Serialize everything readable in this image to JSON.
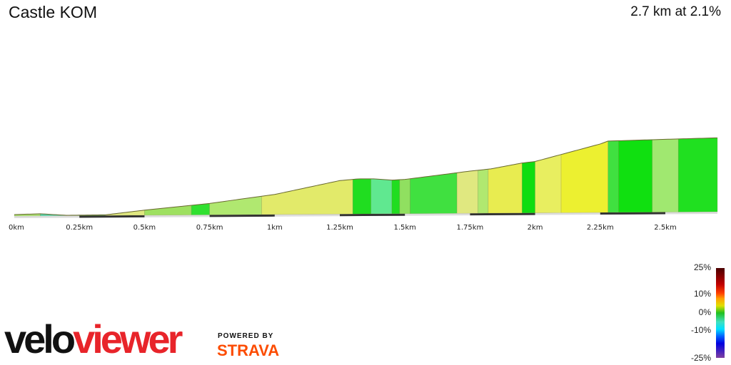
{
  "header": {
    "title": "Castle KOM",
    "summary": "2.7 km at 2.1%"
  },
  "chart_data": {
    "type": "area",
    "xlabel": "",
    "ylabel": "",
    "x_unit": "km",
    "xlim": [
      0,
      2.7
    ],
    "x_ticks": [
      {
        "v": 0,
        "label": "0km"
      },
      {
        "v": 0.25,
        "label": "0.25km"
      },
      {
        "v": 0.5,
        "label": "0.5km"
      },
      {
        "v": 0.75,
        "label": "0.75km"
      },
      {
        "v": 1,
        "label": "1km"
      },
      {
        "v": 1.25,
        "label": "1.25km"
      },
      {
        "v": 1.5,
        "label": "1.5km"
      },
      {
        "v": 1.75,
        "label": "1.75km"
      },
      {
        "v": 2,
        "label": "2km"
      },
      {
        "v": 2.25,
        "label": "2.25km"
      },
      {
        "v": 2.5,
        "label": "2.5km"
      }
    ],
    "profile_relative_elevation_m": [
      [
        0,
        1.1
      ],
      [
        0.1,
        1.6
      ],
      [
        0.2,
        0.3
      ],
      [
        0.35,
        0.5
      ],
      [
        0.5,
        3.9
      ],
      [
        0.75,
        8.8
      ],
      [
        1.0,
        15.4
      ],
      [
        1.25,
        25.8
      ],
      [
        1.32,
        27.0
      ],
      [
        1.38,
        27.0
      ],
      [
        1.45,
        25.9
      ],
      [
        1.5,
        26.4
      ],
      [
        1.75,
        32.5
      ],
      [
        1.83,
        34.1
      ],
      [
        1.95,
        38.5
      ],
      [
        2.0,
        39.6
      ],
      [
        2.25,
        52.8
      ],
      [
        2.28,
        55.0
      ],
      [
        2.5,
        56.1
      ],
      [
        2.7,
        57.0
      ]
    ],
    "gradient_segments": [
      {
        "from": 0,
        "to": 0.1,
        "color": "#a8e070"
      },
      {
        "from": 0.1,
        "to": 0.2,
        "color": "#50d8b0"
      },
      {
        "from": 0.2,
        "to": 0.35,
        "color": "#30c040"
      },
      {
        "from": 0.35,
        "to": 0.5,
        "color": "#e0e880"
      },
      {
        "from": 0.5,
        "to": 0.68,
        "color": "#9ee060"
      },
      {
        "from": 0.68,
        "to": 0.75,
        "color": "#30e030"
      },
      {
        "from": 0.75,
        "to": 0.95,
        "color": "#b0e870"
      },
      {
        "from": 0.95,
        "to": 1.3,
        "color": "#e2ea6a"
      },
      {
        "from": 1.3,
        "to": 1.37,
        "color": "#20dd20"
      },
      {
        "from": 1.37,
        "to": 1.45,
        "color": "#60e890"
      },
      {
        "from": 1.45,
        "to": 1.48,
        "color": "#20dd20"
      },
      {
        "from": 1.48,
        "to": 1.52,
        "color": "#90e060"
      },
      {
        "from": 1.52,
        "to": 1.7,
        "color": "#40e040"
      },
      {
        "from": 1.7,
        "to": 1.78,
        "color": "#e0e880"
      },
      {
        "from": 1.78,
        "to": 1.82,
        "color": "#b0e870"
      },
      {
        "from": 1.82,
        "to": 1.95,
        "color": "#e8ec50"
      },
      {
        "from": 1.95,
        "to": 2.0,
        "color": "#10dd10"
      },
      {
        "from": 2.0,
        "to": 2.1,
        "color": "#e8ee60"
      },
      {
        "from": 2.1,
        "to": 2.28,
        "color": "#ecf030"
      },
      {
        "from": 2.28,
        "to": 2.32,
        "color": "#40e040"
      },
      {
        "from": 2.32,
        "to": 2.45,
        "color": "#10e010"
      },
      {
        "from": 2.45,
        "to": 2.55,
        "color": "#a0e870"
      },
      {
        "from": 2.55,
        "to": 2.7,
        "color": "#20e020"
      }
    ],
    "legend": {
      "placement": "bottom-right",
      "labels": [
        "25%",
        "10%",
        "0%",
        "-10%",
        "-25%"
      ]
    }
  },
  "branding": {
    "logo_part1": "velo",
    "logo_part2": "viewer",
    "powered_by": "POWERED BY",
    "strava": "STRAVA"
  }
}
